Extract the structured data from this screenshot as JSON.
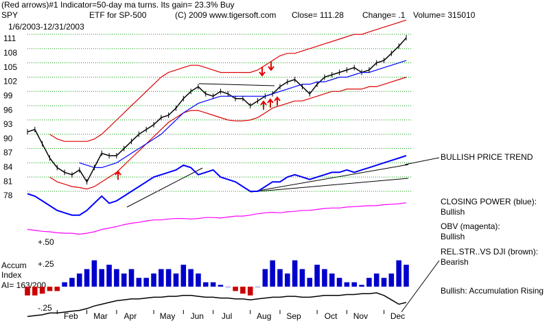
{
  "chart_data": [
    {
      "type": "line",
      "title": "(Red arrows)#1 Indicator=50-day ma turns.  Its gain= 23.3% Buy",
      "header": [
        "SPY",
        "ETF for SP-500",
        "(C) 2009 www.tigersoft.com",
        "Close= 111.28",
        "Change= .1",
        "Volume= 315010"
      ],
      "subtitle": "1/6/2003-12/31/2003",
      "trend_label": "BULLISH PRICE TREND",
      "categories": [
        null,
        null,
        null,
        null,
        "Feb",
        null,
        null,
        null,
        "Mar",
        null,
        null,
        null,
        "Apr",
        null,
        null,
        null,
        null,
        "May",
        null,
        null,
        null,
        "Jun",
        null,
        null,
        null,
        "Jul",
        null,
        null,
        null,
        null,
        "Aug",
        null,
        null,
        null,
        "Sep",
        null,
        null,
        null,
        null,
        "Oct",
        null,
        null,
        null,
        "Nov",
        null,
        null,
        null,
        null,
        "Dec",
        null,
        null,
        null
      ],
      "ylim": [
        70,
        116
      ],
      "yticks": [
        78,
        81,
        84,
        87,
        90,
        93,
        96,
        99,
        102,
        105,
        108,
        111
      ],
      "grid": true,
      "series": [
        {
          "color": "#000000",
          "values": [
            91.5,
            92,
            89,
            86,
            84,
            83,
            82.5,
            83.5,
            81,
            84,
            87,
            86.5,
            86.5,
            88,
            89.5,
            91,
            92,
            93,
            94.5,
            95,
            96.5,
            98.5,
            100,
            101,
            99.5,
            99,
            100,
            99.5,
            98.5,
            98.5,
            97,
            98,
            99,
            99.5,
            101,
            102,
            102.5,
            101,
            99.5,
            101.5,
            103,
            103.5,
            104,
            104.5,
            105,
            104,
            104.5,
            106,
            106.5,
            108,
            109.5,
            111.28
          ]
        },
        {
          "color": "#dd0000",
          "values": [
            null,
            null,
            null,
            91,
            90,
            89.5,
            89.5,
            89.5,
            89.5,
            90,
            91,
            92.5,
            94,
            95.5,
            97,
            98.5,
            100,
            101.5,
            103,
            104,
            104.5,
            105,
            105.5,
            105.5,
            105,
            104.5,
            104,
            104,
            104,
            104,
            104,
            104.5,
            105.5,
            106.5,
            107.5,
            108,
            108,
            108.5,
            109,
            109.5,
            110,
            110.5,
            111,
            111.5,
            112,
            112,
            112.5,
            113,
            113.5,
            114,
            114.5,
            115
          ]
        },
        {
          "color": "#dd0000",
          "values": [
            null,
            null,
            null,
            82,
            81,
            80.5,
            80,
            79.8,
            79.5,
            80,
            81,
            82,
            83,
            84.5,
            86,
            87.5,
            89,
            90.5,
            92,
            93.5,
            94.5,
            95.5,
            96,
            96,
            95.5,
            95,
            94.5,
            94,
            93.8,
            93.8,
            94,
            94.5,
            95.5,
            96.5,
            97,
            97.5,
            98,
            98,
            98.5,
            99,
            99.5,
            100,
            100,
            100.5,
            100.5,
            100.5,
            101,
            101,
            101.5,
            102,
            102.5,
            103
          ]
        },
        {
          "color": "#0000ff",
          "values": [
            null,
            null,
            null,
            null,
            null,
            null,
            null,
            85,
            84.5,
            84,
            84,
            84.5,
            85,
            86,
            87,
            88,
            89,
            90,
            91,
            92.5,
            94,
            95.5,
            96.5,
            97.5,
            98,
            98.5,
            99,
            99,
            99,
            99,
            99,
            99,
            99,
            99.5,
            100,
            100.5,
            101,
            101.5,
            101.5,
            102,
            102,
            102.5,
            103,
            103,
            103.5,
            104,
            104,
            104.5,
            105,
            105.5,
            106,
            106.5
          ]
        },
        {
          "name": "CLOSING POWER (blue):",
          "status": "Bullish",
          "color": "#0000ff",
          "values": [
            78.5,
            78,
            77,
            76,
            75,
            74.5,
            74,
            74,
            75,
            76.5,
            78,
            76.5,
            77,
            78,
            79,
            80,
            81,
            82,
            82.5,
            83,
            83.5,
            84.5,
            84,
            82.5,
            83,
            83.5,
            82,
            81.5,
            81,
            80,
            79,
            79,
            80,
            81,
            81,
            82,
            82.5,
            82,
            81.5,
            82,
            82.5,
            83,
            83,
            83.5,
            83,
            83.5,
            84,
            84.5,
            85,
            85.5,
            86,
            86.5
          ]
        },
        {
          "name": "OBV (magenta):",
          "status": "Bullish",
          "color": "#ff00ff",
          "values": [
            71,
            70.8,
            70.6,
            70.5,
            70.3,
            70.2,
            70.2,
            70,
            70.2,
            70.5,
            71,
            71.3,
            71.6,
            72,
            72.3,
            72.5,
            72.8,
            73,
            73,
            73.2,
            73.3,
            73.3,
            73.2,
            73.3,
            73.5,
            73.5,
            73.4,
            73.6,
            73.8,
            73.8,
            74,
            74.3,
            74.5,
            74.6,
            74.5,
            74.7,
            74.8,
            75,
            75,
            75.2,
            75.4,
            75.5,
            75.5,
            75.7,
            75.8,
            75.9,
            76,
            76,
            76.2,
            76.3,
            76.4,
            76.6
          ]
        }
      ]
    },
    {
      "type": "bar",
      "ylabel": [
        "Accum",
        "Index"
      ],
      "ai_label": "AI= 163/200",
      "note": "Bullish: Accumulation Rising",
      "ylim": [
        -0.4,
        0.55
      ],
      "yticks": [
        {
          "value": 0.5,
          "label": "+.50"
        },
        {
          "value": 0.25,
          "label": "+.25"
        },
        {
          "value": -0.25,
          "label": "-.25"
        }
      ],
      "positive_color": "#0000cc",
      "negative_color": "#cc0000",
      "values": [
        -0.1,
        -0.1,
        -0.08,
        -0.05,
        -0.05,
        0.05,
        0.1,
        0.15,
        0.2,
        0.3,
        0.2,
        0.25,
        0.2,
        0.15,
        0.2,
        0.1,
        0.1,
        0.15,
        0.2,
        0.2,
        0.15,
        0.25,
        0.2,
        0.15,
        0.05,
        0.05,
        0.02,
        0,
        -0.05,
        -0.08,
        -0.1,
        0,
        0.2,
        0.3,
        0.2,
        0.15,
        0.3,
        0.2,
        0.1,
        0.25,
        0.2,
        0.15,
        0.1,
        0.05,
        0.05,
        0.02,
        0.1,
        0.15,
        0.1,
        0.15,
        0.3,
        0.25
      ],
      "series": [
        {
          "name": "REL.STR..VS DJI (brown):",
          "status": "Bearish",
          "color": "#000000",
          "values": [
            -0.34,
            -0.33,
            -0.32,
            -0.3,
            -0.3,
            -0.29,
            -0.28,
            -0.27,
            -0.25,
            -0.22,
            -0.2,
            -0.18,
            -0.16,
            -0.15,
            -0.14,
            -0.14,
            -0.13,
            -0.12,
            -0.12,
            -0.11,
            -0.11,
            -0.1,
            -0.1,
            -0.11,
            -0.12,
            -0.12,
            -0.13,
            -0.13,
            -0.14,
            -0.14,
            -0.15,
            -0.14,
            -0.13,
            -0.12,
            -0.12,
            -0.11,
            -0.11,
            -0.12,
            -0.12,
            -0.11,
            -0.1,
            -0.1,
            -0.1,
            -0.09,
            -0.09,
            -0.08,
            -0.08,
            -0.07,
            -0.1,
            -0.15,
            -0.2,
            -0.18
          ]
        }
      ]
    }
  ]
}
